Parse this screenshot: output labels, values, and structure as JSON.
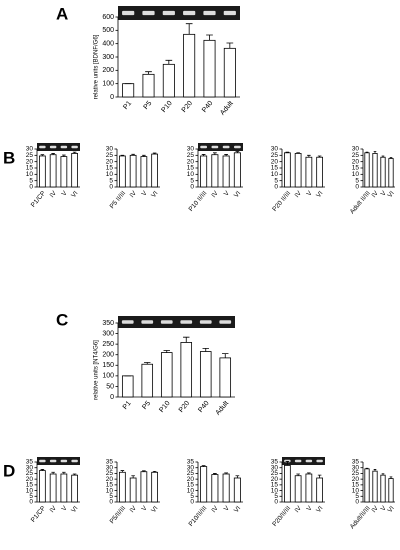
{
  "chart_data": [
    {
      "type": "bar",
      "panel": "A",
      "ylabel": "relative units [BDNF/G6]",
      "categories": [
        "P1",
        "P5",
        "P10",
        "P20",
        "P40",
        "Adult"
      ],
      "values": [
        100,
        170,
        245,
        470,
        425,
        365
      ],
      "errors": [
        0,
        20,
        30,
        80,
        40,
        40
      ],
      "ylim": [
        0,
        600
      ],
      "yticks": [
        0,
        100,
        200,
        300,
        400,
        500,
        600
      ]
    },
    {
      "type": "bar",
      "panel": "B",
      "categories": [
        "P1/CP",
        "IV",
        "V",
        "VI"
      ],
      "values": [
        24.5,
        25.5,
        24,
        26.5
      ],
      "errors": [
        1,
        1,
        1.2,
        1
      ],
      "ylim": [
        0,
        30
      ],
      "yticks": [
        0,
        5,
        10,
        15,
        20,
        25,
        30
      ]
    },
    {
      "type": "bar",
      "categories": [
        "P5 II/III",
        "IV",
        "V",
        "VI"
      ],
      "values": [
        24.5,
        25,
        24,
        26
      ],
      "errors": [
        0.5,
        0.8,
        1,
        0.8
      ],
      "ylim": [
        0,
        30
      ],
      "yticks": [
        0,
        5,
        10,
        15,
        20,
        25,
        30
      ]
    },
    {
      "type": "bar",
      "categories": [
        "P10 II/III",
        "IV",
        "V",
        "VI"
      ],
      "values": [
        24.5,
        25.5,
        24.5,
        27
      ],
      "errors": [
        1.2,
        1.5,
        1.2,
        1
      ],
      "ylim": [
        0,
        30
      ],
      "yticks": [
        0,
        5,
        10,
        15,
        20,
        25,
        30
      ]
    },
    {
      "type": "bar",
      "categories": [
        "P20 II/III",
        "IV",
        "V",
        "VI"
      ],
      "values": [
        27,
        26.5,
        23.5,
        23.5
      ],
      "errors": [
        0.5,
        0.5,
        1.5,
        1
      ],
      "ylim": [
        0,
        30
      ],
      "yticks": [
        0,
        5,
        10,
        15,
        20,
        25,
        30
      ]
    },
    {
      "type": "bar",
      "categories": [
        "Adult II/III",
        "IV",
        "V",
        "VI"
      ],
      "values": [
        27,
        26.5,
        23.5,
        22.5
      ],
      "errors": [
        0.5,
        1.5,
        1,
        0.8
      ],
      "ylim": [
        0,
        30
      ],
      "yticks": [
        0,
        5,
        10,
        15,
        20,
        25,
        30
      ]
    },
    {
      "type": "bar",
      "panel": "C",
      "ylabel": "relative units [NT4/G6]",
      "categories": [
        "P1",
        "P5",
        "P10",
        "P20",
        "P40",
        "Adult"
      ],
      "values": [
        100,
        155,
        210,
        258,
        215,
        185
      ],
      "errors": [
        0,
        8,
        10,
        25,
        15,
        20
      ],
      "ylim": [
        0,
        350
      ],
      "yticks": [
        0,
        50,
        100,
        150,
        200,
        250,
        300,
        350
      ]
    },
    {
      "type": "bar",
      "panel": "D",
      "categories": [
        "P1/CP",
        "IV",
        "V",
        "VI"
      ],
      "values": [
        27.5,
        24.5,
        24.5,
        23.5
      ],
      "errors": [
        1,
        1.5,
        1.5,
        1
      ],
      "ylim": [
        0,
        35
      ],
      "yticks": [
        0,
        5,
        10,
        15,
        20,
        25,
        30,
        35
      ]
    },
    {
      "type": "bar",
      "categories": [
        "P5/II/III",
        "IV",
        "V",
        "VI"
      ],
      "values": [
        26,
        21,
        26.5,
        26
      ],
      "errors": [
        1.5,
        2,
        0.8,
        0.8
      ],
      "ylim": [
        0,
        35
      ],
      "yticks": [
        0,
        5,
        10,
        15,
        20,
        25,
        30,
        35
      ]
    },
    {
      "type": "bar",
      "categories": [
        "P10/II/III",
        "IV",
        "V",
        "VI"
      ],
      "values": [
        31,
        24,
        24.5,
        21
      ],
      "errors": [
        0.8,
        1,
        1,
        2
      ],
      "ylim": [
        0,
        35
      ],
      "yticks": [
        0,
        5,
        10,
        15,
        20,
        25,
        30,
        35
      ]
    },
    {
      "type": "bar",
      "categories": [
        "P20/II/III",
        "IV",
        "V",
        "VI"
      ],
      "values": [
        32,
        23,
        24.5,
        21
      ],
      "errors": [
        3.5,
        1.5,
        1,
        2.5
      ],
      "ylim": [
        0,
        35
      ],
      "yticks": [
        0,
        5,
        10,
        15,
        20,
        25,
        30,
        35
      ]
    },
    {
      "type": "bar",
      "categories": [
        "Adult/II/III",
        "IV",
        "V",
        "VI"
      ],
      "values": [
        29,
        27,
        23.5,
        20.5
      ],
      "errors": [
        0.5,
        1.5,
        1.2,
        1.5
      ],
      "ylim": [
        0,
        35
      ],
      "yticks": [
        0,
        5,
        10,
        15,
        20,
        25,
        30,
        35
      ]
    }
  ]
}
